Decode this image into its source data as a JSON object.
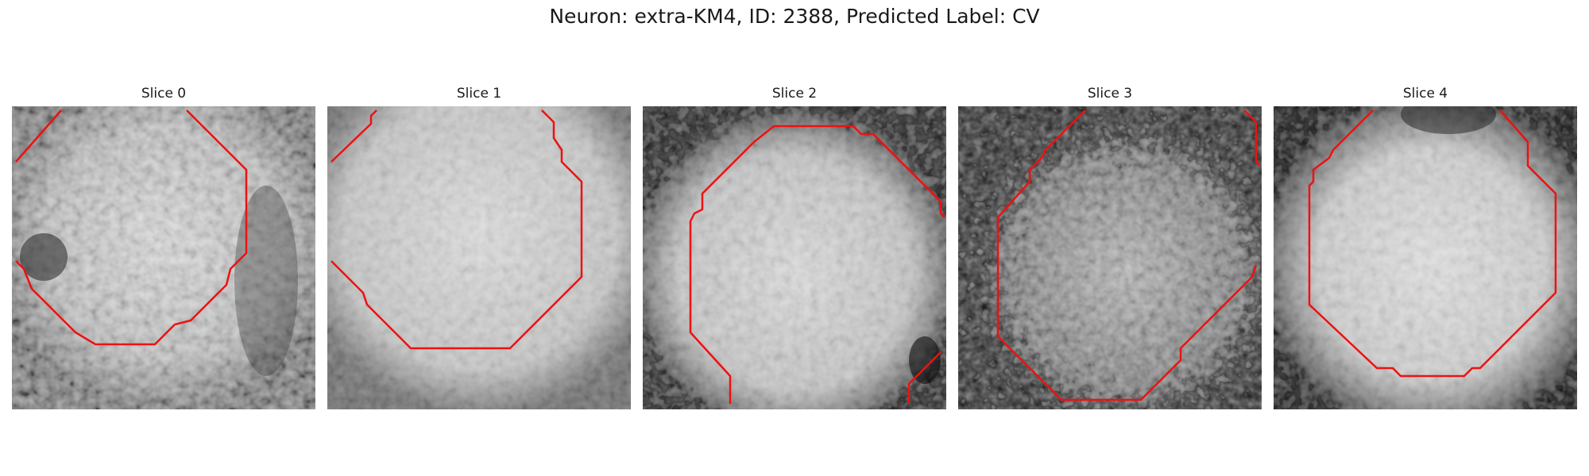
{
  "figure": {
    "title": "Neuron: extra-KM4, ID: 2388, Predicted Label: CV"
  },
  "panels": [
    {
      "title": "Slice 0"
    },
    {
      "title": "Slice 1"
    },
    {
      "title": "Slice 2"
    },
    {
      "title": "Slice 3"
    },
    {
      "title": "Slice 4"
    }
  ],
  "colors": {
    "contour": "#ee1111",
    "background": "#ffffff"
  }
}
